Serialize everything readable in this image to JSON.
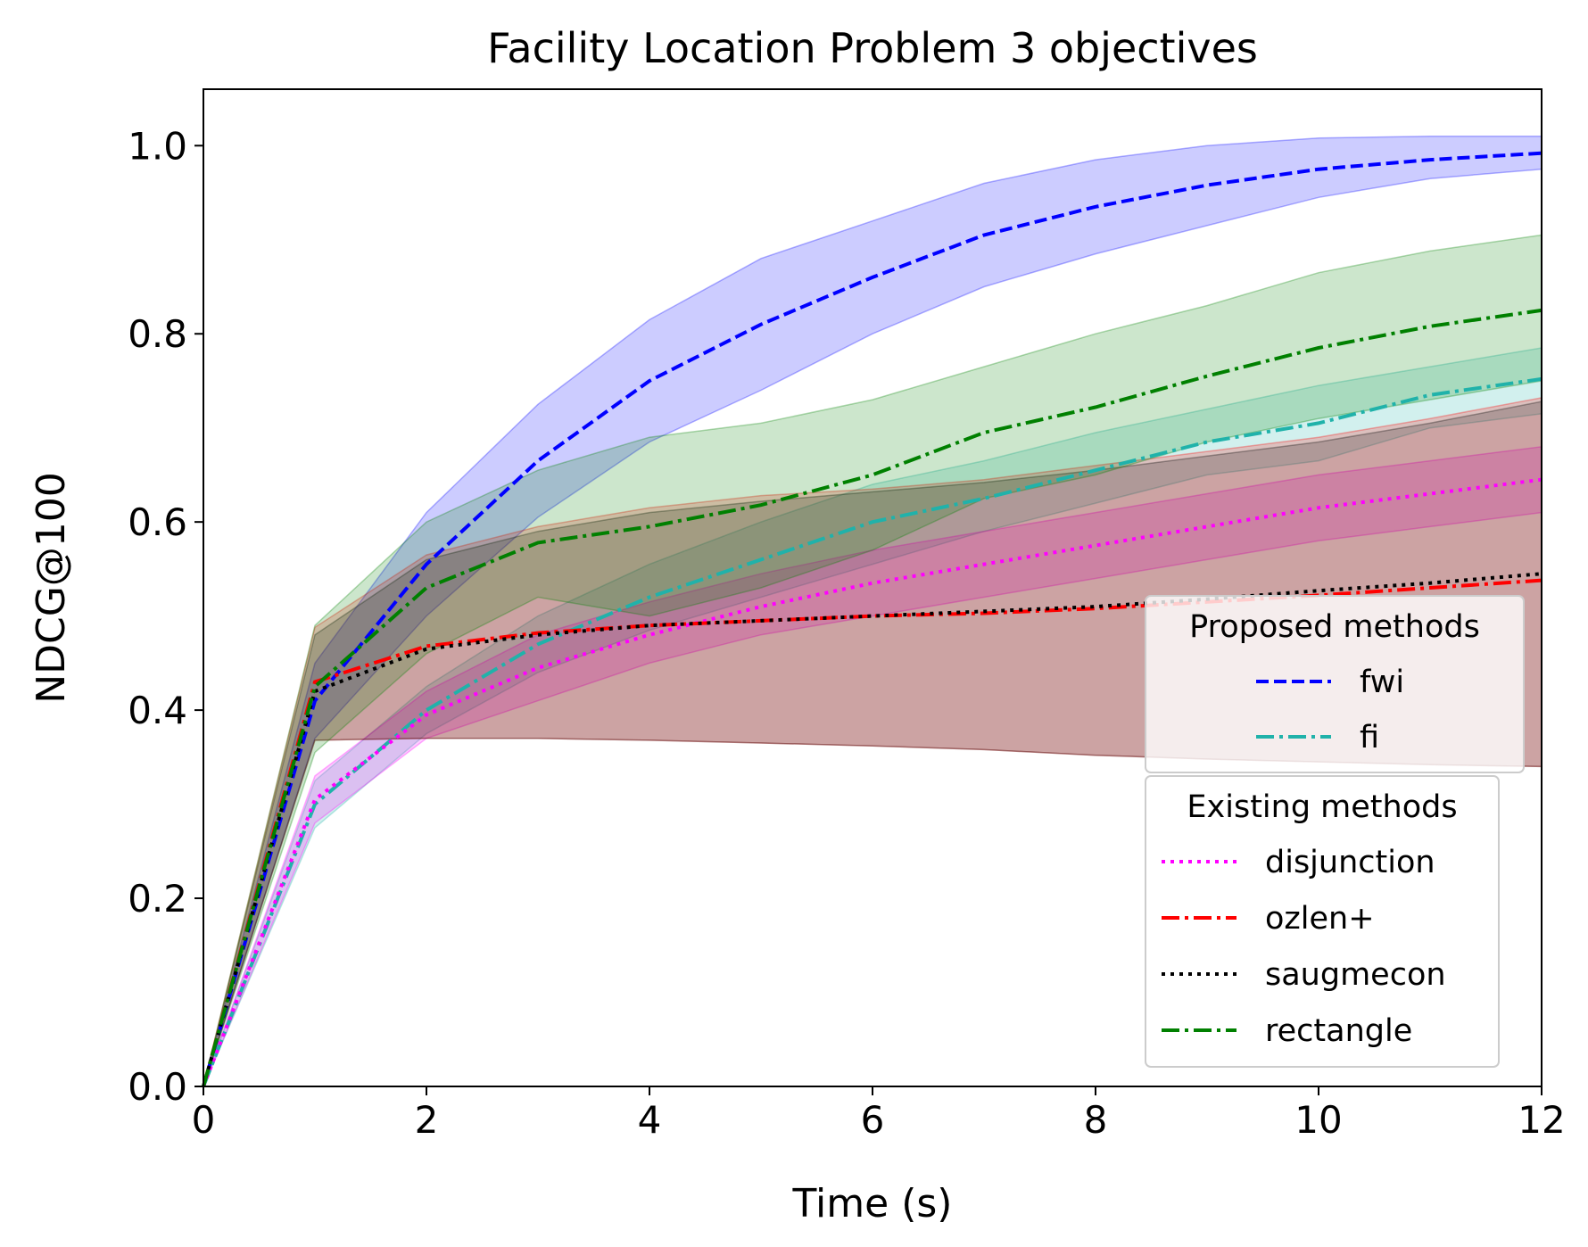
{
  "chart_data": {
    "type": "line",
    "title": "Facility Location Problem 3 objectives",
    "xlabel": "Time (s)",
    "ylabel": "NDCG@100",
    "xlim": [
      0,
      12
    ],
    "ylim": [
      0,
      1.06
    ],
    "xticks": [
      0,
      2,
      4,
      6,
      8,
      10,
      12
    ],
    "yticks": [
      0.0,
      0.2,
      0.4,
      0.6,
      0.8,
      1.0
    ],
    "xtick_labels": [
      "0",
      "2",
      "4",
      "6",
      "8",
      "10",
      "12"
    ],
    "ytick_labels": [
      "0.0",
      "0.2",
      "0.4",
      "0.6",
      "0.8",
      "1.0"
    ],
    "grid": false,
    "x": [
      0,
      1,
      2,
      3,
      4,
      5,
      6,
      7,
      8,
      9,
      10,
      11,
      12
    ],
    "series": [
      {
        "name": "fwi",
        "color": "#0000ff",
        "dash": "dashed",
        "values": [
          0.0,
          0.41,
          0.555,
          0.665,
          0.75,
          0.81,
          0.86,
          0.905,
          0.935,
          0.958,
          0.975,
          0.985,
          0.992
        ],
        "lower": [
          0.0,
          0.37,
          0.5,
          0.605,
          0.685,
          0.74,
          0.8,
          0.85,
          0.885,
          0.915,
          0.945,
          0.965,
          0.975
        ],
        "upper": [
          0.0,
          0.45,
          0.61,
          0.725,
          0.815,
          0.88,
          0.92,
          0.96,
          0.985,
          1.0,
          1.008,
          1.01,
          1.01
        ]
      },
      {
        "name": "fi",
        "color": "#20b2aa",
        "dash": "dashdot",
        "values": [
          0.0,
          0.3,
          0.4,
          0.47,
          0.52,
          0.56,
          0.6,
          0.625,
          0.655,
          0.685,
          0.705,
          0.735,
          0.752
        ],
        "lower": [
          0.0,
          0.275,
          0.375,
          0.44,
          0.485,
          0.52,
          0.555,
          0.59,
          0.62,
          0.65,
          0.665,
          0.7,
          0.715
        ],
        "upper": [
          0.0,
          0.325,
          0.425,
          0.5,
          0.555,
          0.6,
          0.64,
          0.665,
          0.695,
          0.72,
          0.745,
          0.765,
          0.785
        ]
      },
      {
        "name": "disjunction",
        "color": "#ff00ff",
        "dash": "dotted",
        "values": [
          0.0,
          0.305,
          0.395,
          0.445,
          0.48,
          0.51,
          0.535,
          0.555,
          0.575,
          0.595,
          0.615,
          0.63,
          0.645
        ],
        "lower": [
          0.0,
          0.28,
          0.37,
          0.41,
          0.45,
          0.48,
          0.5,
          0.52,
          0.54,
          0.56,
          0.58,
          0.595,
          0.61
        ],
        "upper": [
          0.0,
          0.33,
          0.42,
          0.48,
          0.515,
          0.545,
          0.57,
          0.59,
          0.61,
          0.63,
          0.65,
          0.665,
          0.68
        ]
      },
      {
        "name": "ozlen+",
        "color": "#ff0000",
        "dash": "dashdot",
        "values": [
          0.0,
          0.43,
          0.468,
          0.482,
          0.49,
          0.495,
          0.5,
          0.503,
          0.508,
          0.515,
          0.522,
          0.53,
          0.538
        ],
        "lower": [
          0.0,
          0.368,
          0.37,
          0.37,
          0.368,
          0.365,
          0.362,
          0.358,
          0.352,
          0.348,
          0.345,
          0.342,
          0.34
        ],
        "upper": [
          0.0,
          0.488,
          0.565,
          0.595,
          0.615,
          0.628,
          0.635,
          0.645,
          0.66,
          0.675,
          0.69,
          0.71,
          0.732
        ]
      },
      {
        "name": "saugmecon",
        "color": "#000000",
        "dash": "dotted",
        "values": [
          0.0,
          0.42,
          0.465,
          0.48,
          0.49,
          0.495,
          0.5,
          0.505,
          0.51,
          0.518,
          0.527,
          0.535,
          0.545
        ],
        "lower": [
          0.0,
          0.368,
          0.37,
          0.37,
          0.368,
          0.365,
          0.362,
          0.358,
          0.352,
          0.348,
          0.345,
          0.342,
          0.34
        ],
        "upper": [
          0.0,
          0.48,
          0.56,
          0.59,
          0.61,
          0.622,
          0.632,
          0.642,
          0.655,
          0.67,
          0.685,
          0.705,
          0.728
        ]
      },
      {
        "name": "rectangle",
        "color": "#008000",
        "dash": "dashdot",
        "values": [
          0.0,
          0.425,
          0.53,
          0.578,
          0.595,
          0.618,
          0.65,
          0.695,
          0.722,
          0.755,
          0.785,
          0.808,
          0.825
        ],
        "lower": [
          0.0,
          0.355,
          0.46,
          0.52,
          0.5,
          0.53,
          0.57,
          0.625,
          0.65,
          0.685,
          0.71,
          0.73,
          0.75
        ],
        "upper": [
          0.0,
          0.49,
          0.6,
          0.655,
          0.69,
          0.705,
          0.73,
          0.765,
          0.8,
          0.83,
          0.865,
          0.888,
          0.905
        ]
      }
    ],
    "legend": {
      "placement": "lower-right",
      "groups": [
        {
          "title": "Proposed methods",
          "items": [
            "fwi",
            "fi"
          ]
        },
        {
          "title": "Existing methods",
          "items": [
            "disjunction",
            "ozlen+",
            "saugmecon",
            "rectangle"
          ]
        }
      ]
    }
  }
}
